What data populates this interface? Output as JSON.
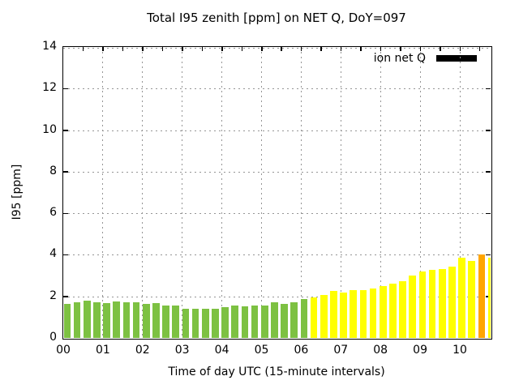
{
  "title": "Total I95 zenith [ppm] on NET Q, DoY=097",
  "legend": {
    "label": "ion net Q",
    "swatch_color": "#000000"
  },
  "colors": {
    "green": "#7DC142",
    "yellow": "#FFFF00",
    "orange": "#FFA500",
    "grid": "#959595",
    "border": "#000000",
    "background": "#FFFFFF"
  },
  "chart_data": {
    "type": "bar",
    "title": "Total I95 zenith [ppm] on NET Q, DoY=097",
    "xlabel": "Time of day UTC (15-minute intervals)",
    "ylabel": "I95 [ppm]",
    "ylim": [
      0,
      14
    ],
    "y_ticks": [
      0,
      2,
      4,
      6,
      8,
      10,
      12,
      14
    ],
    "x_hour_labels": [
      "00",
      "01",
      "02",
      "03",
      "04",
      "05",
      "06",
      "07",
      "08",
      "09",
      "10"
    ],
    "interval_minutes": 15,
    "grid": true,
    "legend_position": "top-right",
    "legend_entries": [
      "ion net Q"
    ],
    "bars": [
      {
        "time": "00:00",
        "value": 1.65,
        "color": "green"
      },
      {
        "time": "00:15",
        "value": 1.7,
        "color": "green"
      },
      {
        "time": "00:30",
        "value": 1.78,
        "color": "green"
      },
      {
        "time": "00:45",
        "value": 1.73,
        "color": "green"
      },
      {
        "time": "01:00",
        "value": 1.66,
        "color": "green"
      },
      {
        "time": "01:15",
        "value": 1.74,
        "color": "green"
      },
      {
        "time": "01:30",
        "value": 1.7,
        "color": "green"
      },
      {
        "time": "01:45",
        "value": 1.72,
        "color": "green"
      },
      {
        "time": "02:00",
        "value": 1.65,
        "color": "green"
      },
      {
        "time": "02:15",
        "value": 1.68,
        "color": "green"
      },
      {
        "time": "02:30",
        "value": 1.56,
        "color": "green"
      },
      {
        "time": "02:45",
        "value": 1.55,
        "color": "green"
      },
      {
        "time": "03:00",
        "value": 1.41,
        "color": "green"
      },
      {
        "time": "03:15",
        "value": 1.41,
        "color": "green"
      },
      {
        "time": "03:30",
        "value": 1.4,
        "color": "green"
      },
      {
        "time": "03:45",
        "value": 1.41,
        "color": "green"
      },
      {
        "time": "04:00",
        "value": 1.5,
        "color": "green"
      },
      {
        "time": "04:15",
        "value": 1.57,
        "color": "green"
      },
      {
        "time": "04:30",
        "value": 1.51,
        "color": "green"
      },
      {
        "time": "04:45",
        "value": 1.56,
        "color": "green"
      },
      {
        "time": "05:00",
        "value": 1.55,
        "color": "green"
      },
      {
        "time": "05:15",
        "value": 1.7,
        "color": "green"
      },
      {
        "time": "05:30",
        "value": 1.65,
        "color": "green"
      },
      {
        "time": "05:45",
        "value": 1.73,
        "color": "green"
      },
      {
        "time": "06:00",
        "value": 1.87,
        "color": "green"
      },
      {
        "time": "06:15",
        "value": 1.95,
        "color": "yellow"
      },
      {
        "time": "06:30",
        "value": 2.05,
        "color": "yellow"
      },
      {
        "time": "06:45",
        "value": 2.25,
        "color": "yellow"
      },
      {
        "time": "07:00",
        "value": 2.17,
        "color": "yellow"
      },
      {
        "time": "07:15",
        "value": 2.31,
        "color": "yellow"
      },
      {
        "time": "07:30",
        "value": 2.3,
        "color": "yellow"
      },
      {
        "time": "07:45",
        "value": 2.36,
        "color": "yellow"
      },
      {
        "time": "08:00",
        "value": 2.48,
        "color": "yellow"
      },
      {
        "time": "08:15",
        "value": 2.61,
        "color": "yellow"
      },
      {
        "time": "08:30",
        "value": 2.74,
        "color": "yellow"
      },
      {
        "time": "08:45",
        "value": 2.99,
        "color": "yellow"
      },
      {
        "time": "09:00",
        "value": 3.21,
        "color": "yellow"
      },
      {
        "time": "09:15",
        "value": 3.27,
        "color": "yellow"
      },
      {
        "time": "09:30",
        "value": 3.32,
        "color": "yellow"
      },
      {
        "time": "09:45",
        "value": 3.42,
        "color": "yellow"
      },
      {
        "time": "10:00",
        "value": 3.85,
        "color": "yellow"
      },
      {
        "time": "10:15",
        "value": 3.72,
        "color": "yellow"
      },
      {
        "time": "10:30",
        "value": 4.02,
        "color": "orange"
      },
      {
        "time": "10:45",
        "value": 3.87,
        "color": "yellow"
      }
    ]
  }
}
